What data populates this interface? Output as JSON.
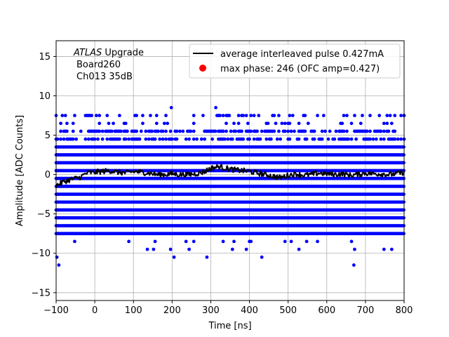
{
  "chart_data": {
    "type": "scatter",
    "title": "",
    "xlabel": "Time [ns]",
    "ylabel": "Amplitude [ADC Counts]",
    "xlim": [
      -100,
      800
    ],
    "ylim": [
      -16,
      17
    ],
    "xticks": [
      -100,
      0,
      100,
      200,
      300,
      400,
      500,
      600,
      700,
      800
    ],
    "yticks": [
      -15,
      -10,
      -5,
      0,
      5,
      10,
      15
    ],
    "grid": true,
    "legend_placement": "top-right",
    "annotation": {
      "line1_italic": "ATLAS",
      "line1_rest": " Upgrade",
      "line2": "Board260",
      "line3": "Ch013 35dB"
    },
    "series": [
      {
        "name": "average interleaved pulse 0.427mA",
        "type": "line",
        "color": "#000000",
        "x": [
          -100,
          -80,
          -60,
          -40,
          -20,
          0,
          20,
          40,
          60,
          80,
          100,
          120,
          140,
          160,
          180,
          200,
          220,
          240,
          260,
          280,
          300,
          320,
          340,
          360,
          380,
          400,
          420,
          440,
          460,
          480,
          500,
          520,
          540,
          560,
          580,
          600,
          620,
          640,
          660,
          680,
          700,
          720,
          740,
          760,
          780,
          800
        ],
        "y": [
          -1.4,
          -0.9,
          -0.6,
          -0.4,
          0.2,
          0.3,
          0.4,
          0.5,
          0.3,
          0.2,
          0.4,
          0.3,
          0.2,
          0.0,
          0.0,
          0.1,
          0.0,
          0.0,
          0.1,
          0.3,
          0.8,
          1.0,
          0.8,
          0.6,
          0.5,
          0.4,
          0.2,
          0.0,
          -0.2,
          -0.4,
          -0.1,
          0.1,
          -0.1,
          0.0,
          0.2,
          0.1,
          0.0,
          0.1,
          -0.1,
          0.0,
          0.2,
          0.1,
          0.1,
          0.0,
          0.1,
          0.3
        ]
      },
      {
        "name": "max phase: 246 (OFC amp=0.427)",
        "type": "scatter",
        "color": "#0000ff",
        "legend_marker_color": "#ff0000",
        "x_range": [
          -100,
          800
        ],
        "dense_levels": [
          -7.5,
          -6.5,
          -5.5,
          -4.5,
          -3.5,
          -2.5,
          -1.5,
          -0.5,
          0.5,
          1.5,
          2.5,
          3.5
        ],
        "sparse_levels": [
          -9.5,
          -8.5,
          4.5,
          5.5,
          6.5,
          7.5
        ],
        "outliers": [
          {
            "x": -98,
            "y": -10.5
          },
          {
            "x": -93,
            "y": -11.5
          },
          {
            "x": 205,
            "y": -10.5
          },
          {
            "x": 290,
            "y": -10.5
          },
          {
            "x": 432,
            "y": -10.5
          },
          {
            "x": 670,
            "y": -11.5
          },
          {
            "x": 198,
            "y": 8.5
          },
          {
            "x": 313,
            "y": 8.5
          }
        ]
      }
    ]
  }
}
